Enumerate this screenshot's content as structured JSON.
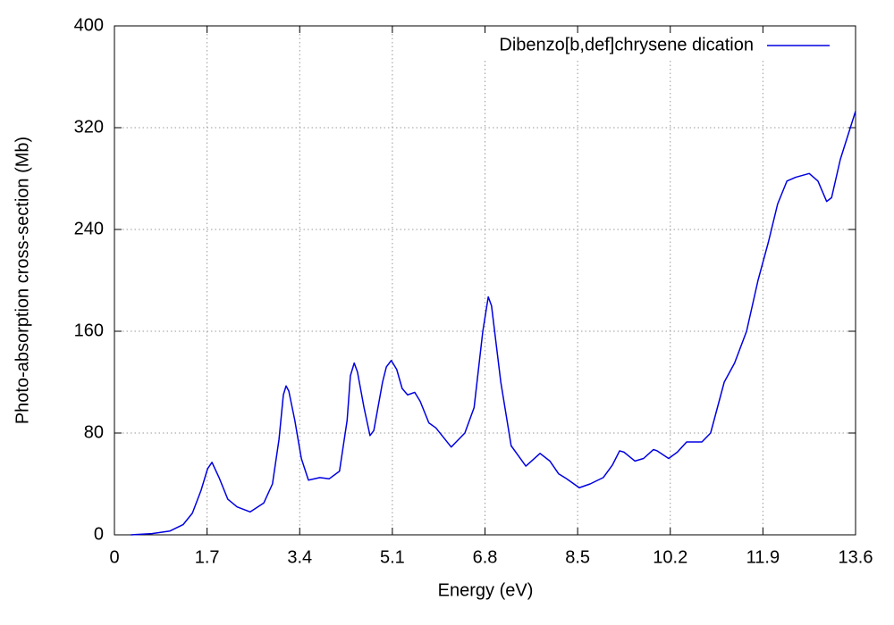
{
  "chart_data": {
    "type": "line",
    "xlabel": "Energy (eV)",
    "ylabel": "Photo-absorption cross-section (Mb)",
    "xlim": [
      0,
      13.6
    ],
    "ylim": [
      0,
      400
    ],
    "xticks": [
      0,
      1.7,
      3.4,
      5.1,
      6.8,
      8.5,
      10.2,
      11.9,
      13.6
    ],
    "yticks": [
      0,
      80,
      160,
      240,
      320,
      400
    ],
    "grid": true,
    "legend": "upper right",
    "series": [
      {
        "name": "Dibenzo[b,def]chrysene dication",
        "color": "#0000e0",
        "x": [
          0.3,
          0.69,
          1.02,
          1.26,
          1.43,
          1.59,
          1.71,
          1.79,
          1.92,
          2.08,
          2.25,
          2.49,
          2.74,
          2.9,
          3.02,
          3.1,
          3.15,
          3.2,
          3.31,
          3.43,
          3.56,
          3.77,
          3.94,
          4.13,
          4.27,
          4.33,
          4.4,
          4.46,
          4.58,
          4.69,
          4.76,
          4.92,
          4.99,
          5.08,
          5.18,
          5.28,
          5.38,
          5.51,
          5.61,
          5.77,
          5.9,
          6.18,
          6.43,
          6.6,
          6.76,
          6.86,
          6.92,
          7.09,
          7.28,
          7.55,
          7.81,
          7.99,
          8.15,
          8.3,
          8.53,
          8.73,
          8.97,
          9.14,
          9.27,
          9.35,
          9.55,
          9.71,
          9.89,
          9.96,
          10.17,
          10.33,
          10.5,
          10.78,
          10.94,
          11.19,
          11.38,
          11.6,
          11.81,
          12.0,
          12.17,
          12.34,
          12.5,
          12.75,
          12.91,
          13.07,
          13.16,
          13.32,
          13.6
        ],
        "values": [
          0,
          1,
          3,
          8,
          17,
          35,
          52,
          57,
          45,
          28,
          22,
          18,
          25,
          40,
          75,
          110,
          117,
          113,
          90,
          60,
          43,
          45,
          44,
          50,
          90,
          125,
          135,
          128,
          100,
          78,
          82,
          120,
          132,
          137,
          130,
          115,
          110,
          112,
          105,
          88,
          84,
          69,
          80,
          100,
          160,
          187,
          180,
          120,
          70,
          54,
          64,
          58,
          48,
          44,
          37,
          40,
          45,
          55,
          66,
          65,
          58,
          60,
          67,
          66,
          60,
          65,
          73,
          73,
          80,
          120,
          135,
          160,
          200,
          230,
          260,
          278,
          281,
          284,
          278,
          262,
          265,
          295,
          333
        ]
      }
    ]
  }
}
